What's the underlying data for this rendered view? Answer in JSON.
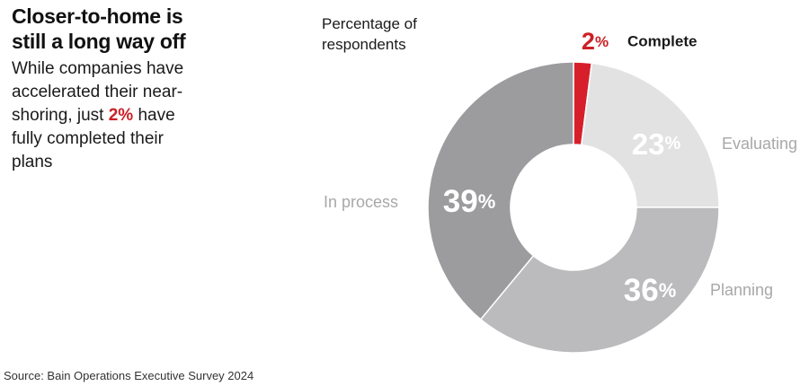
{
  "headline": {
    "lines": [
      "Closer-to-home is",
      "still a long way off"
    ]
  },
  "dek": {
    "line1": "While companies have",
    "line2": "accelerated their near-",
    "line3_before": "shoring, just ",
    "line3_highlight": "2%",
    "line3_after": " have",
    "line4": "fully completed their",
    "line5": "plans"
  },
  "chart_note": [
    "Percentage of",
    "respondents"
  ],
  "source": "Source: Bain Operations Executive Survey 2024",
  "colors": {
    "complete": "#d71f2b",
    "evaluating": "#e2e2e2",
    "planning": "#bbbbbd",
    "in_process": "#9c9c9e",
    "accent_text": "#cc1f26",
    "label_gray": "#a8a8aa"
  },
  "chart_data": {
    "type": "donut",
    "title": "",
    "unit": "%",
    "slices": [
      {
        "name": "Complete",
        "value": 2
      },
      {
        "name": "Evaluating",
        "value": 23
      },
      {
        "name": "Planning",
        "value": 36
      },
      {
        "name": "In process",
        "value": 39
      }
    ]
  }
}
